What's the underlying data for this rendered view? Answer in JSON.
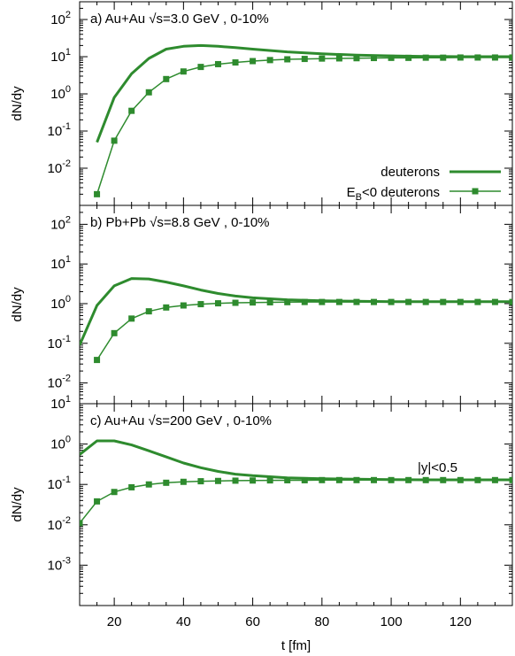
{
  "chart_data": {
    "type": "line",
    "x_label": "t [fm]",
    "shared_x": {
      "lim": [
        10,
        135
      ],
      "ticks": [
        20,
        40,
        60,
        80,
        100,
        120
      ],
      "tick_labels": [
        "20",
        "40",
        "60",
        "80",
        "100",
        "120"
      ]
    },
    "legend": {
      "placement": "bottom-right of panel a",
      "entries": [
        {
          "label": "deuterons",
          "marker": "none",
          "color": "#2e8b2e"
        },
        {
          "label_main": "E",
          "label_sub": "B",
          "label_rest": "<0 deuterons",
          "marker": "filled-square",
          "color": "#2e8b2e"
        }
      ]
    },
    "panels": [
      {
        "title": "a) Au+Au √s=3.0 GeV , 0-10%",
        "y_label": "dN/dy",
        "y_scale": "log",
        "ylim": [
          0.001,
          300
        ],
        "y_ticks": [
          {
            "base": "10",
            "exp": "-2"
          },
          {
            "base": "10",
            "exp": "-1"
          },
          {
            "base": "10",
            "exp": "0"
          },
          {
            "base": "10",
            "exp": "1"
          },
          {
            "base": "10",
            "exp": "2"
          }
        ],
        "series": [
          {
            "name": "deuterons",
            "x": [
              15,
              20,
              25,
              30,
              35,
              40,
              45,
              50,
              55,
              60,
              70,
              80,
              90,
              100,
              110,
              120,
              130,
              135
            ],
            "y": [
              0.05,
              0.8,
              3.5,
              9,
              16,
              19,
              20,
              19,
              17.5,
              16,
              13.5,
              12,
              11,
              10.5,
              10.2,
              10,
              10,
              10
            ]
          },
          {
            "name": "E_B<0 deuterons",
            "x": [
              15,
              20,
              25,
              30,
              35,
              40,
              45,
              50,
              55,
              60,
              65,
              70,
              75,
              80,
              85,
              90,
              95,
              100,
              105,
              110,
              115,
              120,
              125,
              130,
              135
            ],
            "y": [
              0.002,
              0.055,
              0.35,
              1.1,
              2.5,
              4,
              5.3,
              6.3,
              7,
              7.6,
              8.1,
              8.5,
              8.7,
              8.9,
              9.0,
              9.1,
              9.2,
              9.3,
              9.3,
              9.4,
              9.4,
              9.5,
              9.5,
              9.5,
              9.5
            ]
          }
        ]
      },
      {
        "title": "b) Pb+Pb √s=8.8 GeV , 0-10%",
        "y_label": "dN/dy",
        "y_scale": "log",
        "ylim": [
          0.003,
          300
        ],
        "y_ticks": [
          {
            "base": "10",
            "exp": "-2"
          },
          {
            "base": "10",
            "exp": "-1"
          },
          {
            "base": "10",
            "exp": "0"
          },
          {
            "base": "10",
            "exp": "1"
          },
          {
            "base": "10",
            "exp": "2"
          }
        ],
        "series": [
          {
            "name": "deuterons",
            "x": [
              10,
              15,
              20,
              25,
              30,
              35,
              40,
              45,
              50,
              55,
              60,
              70,
              80,
              90,
              100,
              110,
              120,
              130,
              135
            ],
            "y": [
              0.09,
              0.9,
              2.8,
              4.3,
              4.2,
              3.5,
              2.8,
              2.2,
              1.8,
              1.55,
              1.4,
              1.25,
              1.18,
              1.15,
              1.12,
              1.12,
              1.12,
              1.12,
              1.12
            ]
          },
          {
            "name": "E_B<0 deuterons",
            "x": [
              15,
              20,
              25,
              30,
              35,
              40,
              45,
              50,
              55,
              60,
              65,
              70,
              75,
              80,
              85,
              90,
              95,
              100,
              105,
              110,
              115,
              120,
              125,
              130,
              135
            ],
            "y": [
              0.038,
              0.18,
              0.42,
              0.64,
              0.8,
              0.9,
              0.97,
              1.02,
              1.05,
              1.07,
              1.08,
              1.09,
              1.1,
              1.1,
              1.1,
              1.1,
              1.1,
              1.1,
              1.1,
              1.1,
              1.1,
              1.1,
              1.1,
              1.1,
              1.1
            ]
          }
        ]
      },
      {
        "title": "c) Au+Au √s=200 GeV , 0-10%",
        "annotation": "|y|<0.5",
        "y_label": "dN/dy",
        "y_scale": "log",
        "ylim": [
          0.0001,
          10
        ],
        "y_ticks": [
          {
            "base": "10",
            "exp": "-3"
          },
          {
            "base": "10",
            "exp": "-2"
          },
          {
            "base": "10",
            "exp": "-1"
          },
          {
            "base": "10",
            "exp": "0"
          },
          {
            "base": "10",
            "exp": "1"
          }
        ],
        "series": [
          {
            "name": "deuterons",
            "x": [
              10,
              15,
              20,
              25,
              30,
              35,
              40,
              45,
              50,
              55,
              60,
              70,
              80,
              90,
              100,
              110,
              120,
              130,
              135
            ],
            "y": [
              0.55,
              1.2,
              1.2,
              0.95,
              0.68,
              0.48,
              0.34,
              0.26,
              0.21,
              0.18,
              0.165,
              0.145,
              0.138,
              0.135,
              0.132,
              0.13,
              0.13,
              0.13,
              0.13
            ]
          },
          {
            "name": "E_B<0 deuterons",
            "x": [
              10,
              15,
              20,
              25,
              30,
              35,
              40,
              45,
              50,
              55,
              60,
              65,
              70,
              75,
              80,
              85,
              90,
              95,
              100,
              105,
              110,
              115,
              120,
              125,
              130,
              135
            ],
            "y": [
              0.011,
              0.038,
              0.065,
              0.085,
              0.1,
              0.11,
              0.116,
              0.12,
              0.122,
              0.124,
              0.125,
              0.126,
              0.127,
              0.127,
              0.128,
              0.128,
              0.128,
              0.128,
              0.128,
              0.128,
              0.128,
              0.128,
              0.128,
              0.128,
              0.128,
              0.128
            ]
          }
        ]
      }
    ]
  }
}
